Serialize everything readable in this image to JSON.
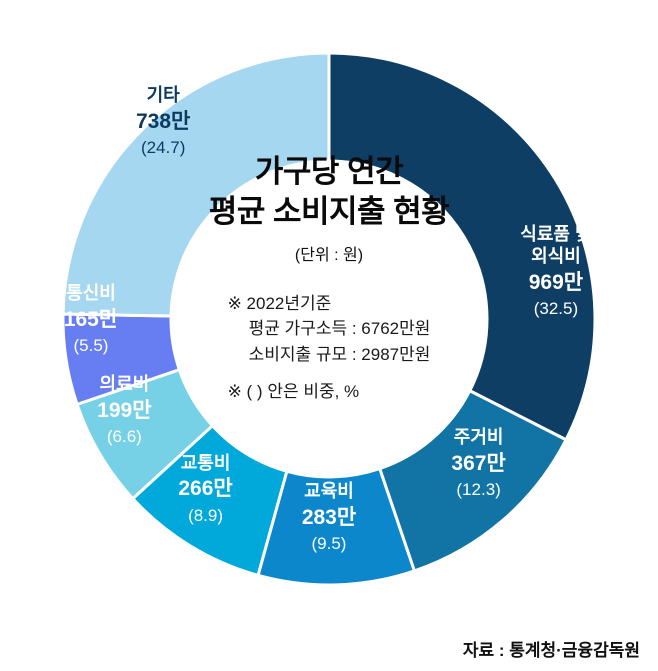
{
  "chart_data": {
    "type": "pie",
    "subtype": "donut",
    "title": "가구당 연간 평균 소비지출 현황",
    "title_line1": "가구당 연간",
    "title_line2": "평균 소비지출 현황",
    "unit_note": "(단위 : 원)",
    "note_base_year": "※ 2022년기준",
    "note_income": "평균 가구소득 : 6762만원",
    "note_expenditure": "소비지출 규모 : 2987만원",
    "note_pct": "※ ( ) 안은 비중, %",
    "source": "자료 : 통계청·금융감독원",
    "value_suffix": "만",
    "total_value": 2987,
    "start_angle_deg": 0,
    "direction": "clockwise",
    "segments": [
      {
        "name": "식료품 및\n외식비",
        "value": 969,
        "pct": 32.5,
        "color": "#0e3e63",
        "text_color": "#ffffff",
        "label_angle_deg": 78,
        "label_radius_px": 232
      },
      {
        "name": "주거비",
        "value": 367,
        "pct": 12.3,
        "color": "#1274a4",
        "text_color": "#ffffff",
        "label_angle_deg": 134,
        "label_radius_px": 208
      },
      {
        "name": "교육비",
        "value": 283,
        "pct": 9.5,
        "color": "#0c87cc",
        "text_color": "#ffffff",
        "label_angle_deg": 180,
        "label_radius_px": 198
      },
      {
        "name": "교통비",
        "value": 266,
        "pct": 8.9,
        "color": "#00a9da",
        "text_color": "#ffffff",
        "label_angle_deg": 216,
        "label_radius_px": 210
      },
      {
        "name": "의료비",
        "value": 199,
        "pct": 6.6,
        "color": "#76d1e6",
        "text_color": "#ffffff",
        "label_angle_deg": 246,
        "label_radius_px": 224
      },
      {
        "name": "통신비",
        "value": 165,
        "pct": 5.5,
        "color": "#667ef2",
        "text_color": "#ffffff",
        "label_angle_deg": 270,
        "label_radius_px": 238
      },
      {
        "name": "기타",
        "value": 738,
        "pct": 24.7,
        "color": "#a6d7f0",
        "text_color": "#0d3a5f",
        "label_angle_deg": 320,
        "label_radius_px": 258
      }
    ]
  }
}
